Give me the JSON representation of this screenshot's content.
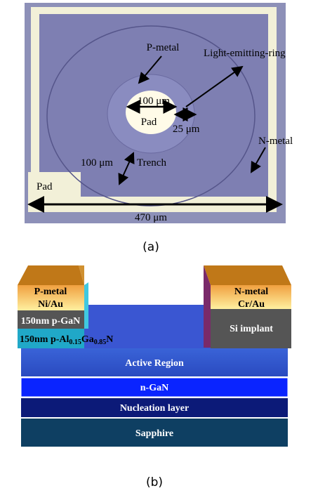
{
  "panel_a": {
    "labels": {
      "p_metal": "P-metal",
      "ring": "Light-emitting-ring",
      "inner_diameter": "100 μm",
      "center_pad": "Pad",
      "ring_width": "25 μm",
      "n_metal": "N-metal",
      "trench_width": "100 μm",
      "trench": "Trench",
      "corner_pad": "Pad",
      "width": "470 μm"
    },
    "caption": "(a)"
  },
  "panel_b": {
    "left": {
      "metal": "P-metal",
      "metal_stack": "Ni/Au",
      "cap_layer": "150nm p-GaN",
      "barrier": [
        "150nm p-Al",
        "0.15",
        "Ga",
        "0.85",
        "N"
      ]
    },
    "right": {
      "metal": "N-metal",
      "metal_stack": "Cr/Au",
      "implant": "Si implant"
    },
    "layers": [
      "Active Region",
      "n-GaN",
      "Nucleation layer",
      "Sapphire"
    ],
    "caption": "(b)"
  }
}
